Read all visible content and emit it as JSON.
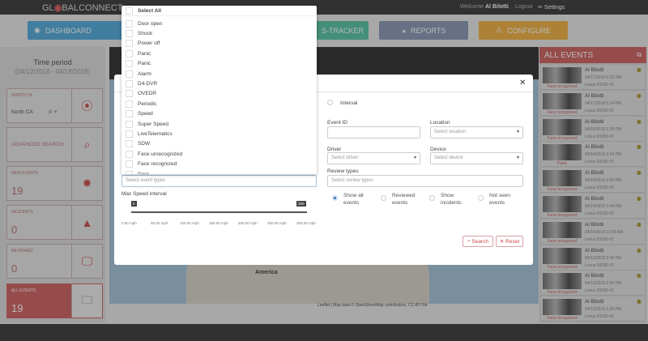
{
  "header": {
    "logo": "GLOBALCONNECT",
    "welcome_prefix": "Welcome",
    "user": "Al Bilotti",
    "logout": "Logout",
    "settings": "Settings"
  },
  "nav": [
    {
      "label": "DASHBOARD",
      "color": "#5aaedb"
    },
    {
      "label": "S-TRACKER",
      "color": "#5fc6a8"
    },
    {
      "label": "REPORTS",
      "color": "#8f9bb8"
    },
    {
      "label": "CONFIGURE",
      "color": "#f0b44c"
    }
  ],
  "sidebar": {
    "time_title": "Time period",
    "time_range": "(04/12/2018 - 04/18/2018)",
    "region": {
      "label": "NORTH CA",
      "value": "North CA"
    },
    "advanced": "ADVANCED SEARCH",
    "cards": [
      {
        "label": "NEW EVENTS",
        "count": "19"
      },
      {
        "label": "INCIDENTS",
        "count": "0"
      },
      {
        "label": "REVIEWED",
        "count": "0"
      },
      {
        "label": "ALL EVENTS",
        "count": "19"
      }
    ]
  },
  "map": {
    "label_america": "America",
    "attribution": "Leaflet | Map data © OpenStreetMap contributors, CC-BY-SA"
  },
  "events_panel": {
    "title": "ALL EVENTS",
    "items": [
      {
        "name": "Al Bilotti",
        "date": "04/17/2018 5:22 PM",
        "device": "Lexus 03290 #2",
        "tag": "Face recognized"
      },
      {
        "name": "Al Bilotti",
        "date": "04/17/2018 5:14 PM",
        "device": "Lexus 03290 #2",
        "tag": "Face recognized"
      },
      {
        "name": "Al Bilotti",
        "date": "04/16/2018 1:35 PM",
        "device": "Lexus 03290 #2",
        "tag": "Face recognized"
      },
      {
        "name": "Al Bilotti",
        "date": "04/14/2018 2:34 PM",
        "device": "Lexus 03290 #2",
        "tag": "Panic"
      },
      {
        "name": "Al Bilotti",
        "date": "04/14/2018 2:20 PM",
        "device": "Lexus 03290 #2",
        "tag": "Face recognized"
      },
      {
        "name": "Al Bilotti",
        "date": "04/14/2018 1:44 PM",
        "device": "Lexus 03290 #2",
        "tag": "Face recognized"
      },
      {
        "name": "Al Bilotti",
        "date": "04/14/2018 11:58 AM",
        "device": "Lexus 03290 #2",
        "tag": "Face recognized"
      },
      {
        "name": "Al Bilotti",
        "date": "04/13/2018 2:45 PM",
        "device": "Lexus 03290 #2",
        "tag": "Face recognized"
      },
      {
        "name": "Al Bilotti",
        "date": "04/13/2018 2:55 PM",
        "device": "Lexus 03290 #2",
        "tag": "Face recognized"
      },
      {
        "name": "Al Bilotti",
        "date": "04/13/2018 1:26 PM",
        "device": "Lexus 03290 #2",
        "tag": "Face recognized"
      }
    ]
  },
  "modal": {
    "interval_label": "Interval",
    "event_id_label": "Event ID",
    "event_id_value": "",
    "location_label": "Location",
    "location_placeholder": "Select location",
    "driver_label": "Driver",
    "driver_placeholder": "Select driver",
    "device_label": "Device",
    "device_placeholder": "Select device",
    "review_types_label": "Review types",
    "review_types_placeholder": "Select review types",
    "event_types_placeholder": "Select event types",
    "speed_label": "Max Speed interval",
    "speed_min": "0",
    "speed_max": "300",
    "speed_ticks": [
      "0.00 mph",
      "50.00 mph",
      "100.00 mph",
      "150.00 mph",
      "200.00 mph",
      "250.00 mph",
      "300.00 mph"
    ],
    "radios": [
      {
        "label": "Show all events",
        "checked": true
      },
      {
        "label": "Reviewed events",
        "checked": false
      },
      {
        "label": "Show incidents",
        "checked": false
      },
      {
        "label": "Not seen events",
        "checked": false
      }
    ],
    "search": "Search",
    "reset": "Reset"
  },
  "event_dropdown": {
    "select_all": "Select All",
    "options": [
      "Door open",
      "Shock",
      "Power off",
      "Panic",
      "Panic",
      "Alarm",
      "D4-DVR",
      "OVEDR",
      "Periodic",
      "Speed",
      "Super Speed",
      "LiveTelematics",
      "SDW",
      "Face unrecognized",
      "Face recognized",
      "Door"
    ]
  }
}
